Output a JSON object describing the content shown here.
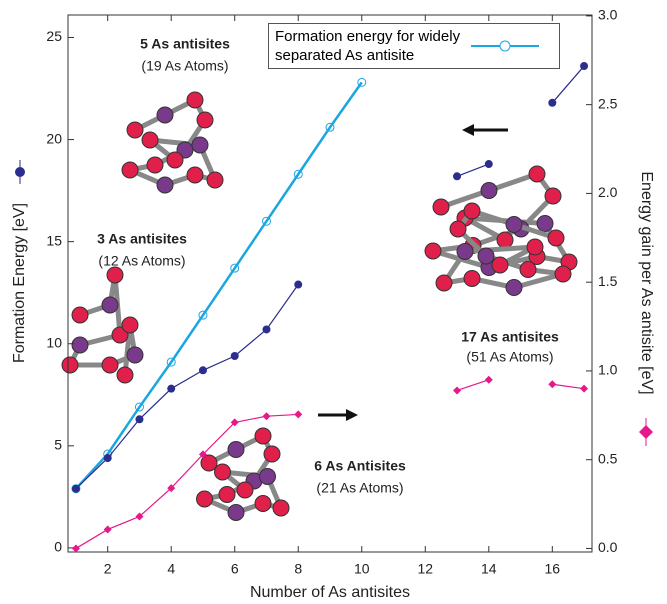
{
  "chart_data": {
    "type": "line",
    "xlabel": "Number of As antisites",
    "ylabel": "Formation Energy [eV]",
    "y2label": "Energy gain per As antisite [eV]",
    "xlim": [
      0.75,
      17.25
    ],
    "xticks": [
      2,
      4,
      6,
      8,
      10,
      12,
      14,
      16
    ],
    "ylim": [
      -0.2,
      26.1
    ],
    "yticks": [
      0,
      5,
      10,
      15,
      20,
      25
    ],
    "y2lim": [
      -0.02,
      3.005
    ],
    "y2ticks": [
      {
        "value": 0,
        "label": "0.0"
      },
      {
        "value": 0.5,
        "label": "0.5"
      },
      {
        "value": 1,
        "label": "1.0"
      },
      {
        "value": 1.5,
        "label": "1.5"
      },
      {
        "value": 2,
        "label": "2.0"
      },
      {
        "value": 2.5,
        "label": "2.5"
      },
      {
        "value": 3,
        "label": "3.0"
      }
    ],
    "series": [
      {
        "name": "Formation energy for widely separated As antisite",
        "color": "#1aa6e0",
        "marker": "open-circle",
        "x": [
          1,
          2,
          3,
          4,
          5,
          6,
          7,
          8,
          9,
          10
        ],
        "values": [
          2.9,
          4.6,
          6.9,
          9.1,
          11.4,
          13.7,
          16.0,
          18.3,
          20.6,
          22.8
        ]
      },
      {
        "color": "#2b2e8c",
        "marker": "circle",
        "x": [
          1,
          2,
          3,
          4,
          5,
          6,
          7,
          8,
          13,
          14,
          16,
          17
        ],
        "values": [
          2.9,
          4.4,
          6.3,
          7.8,
          8.7,
          9.4,
          10.7,
          12.9,
          18.2,
          18.8,
          21.8,
          23.6
        ]
      },
      {
        "color": "#e6198c",
        "marker": "diamond",
        "axis": "y2",
        "x": [
          1,
          2,
          3,
          4,
          5,
          6,
          7,
          8,
          13,
          14,
          16,
          17
        ],
        "values": [
          0.0,
          0.107,
          0.18,
          0.34,
          0.53,
          0.71,
          0.745,
          0.755,
          0.89,
          0.95,
          0.925,
          0.9
        ]
      }
    ],
    "annotations": [
      {
        "title": "5 As antisites",
        "subtitle": "(19 As Atoms)"
      },
      {
        "title": "3 As antisites",
        "subtitle": "(12 As Atoms)"
      },
      {
        "title": "6 As Antisites",
        "subtitle": "(21 As Atoms)"
      },
      {
        "title": "17 As antisites",
        "subtitle": "(51 As Atoms)"
      }
    ]
  }
}
